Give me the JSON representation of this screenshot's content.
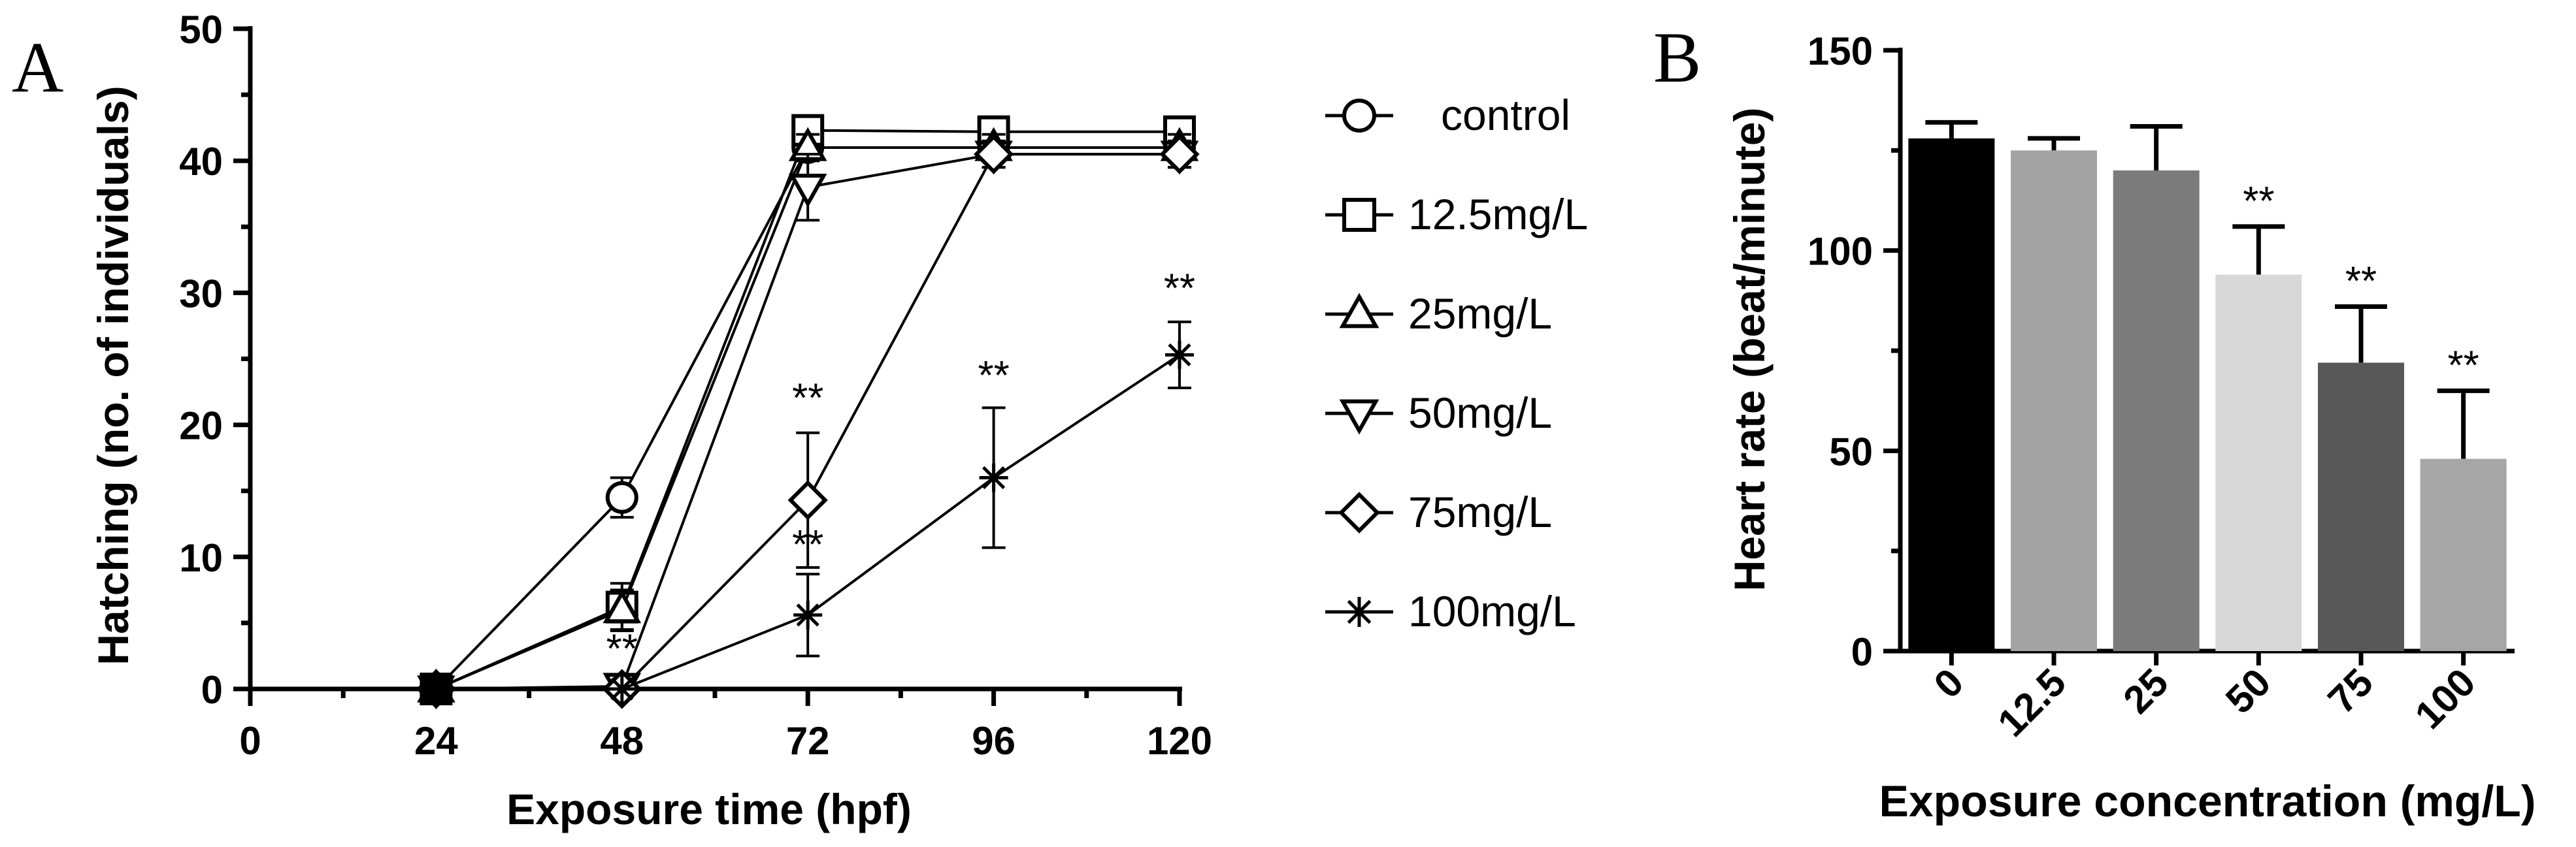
{
  "chart_data": [
    {
      "panel": "A",
      "type": "line",
      "xlabel": "Exposure time (hpf)",
      "ylabel": "Hatching (no. of individuals)",
      "xlim": [
        0,
        120
      ],
      "ylim": [
        0,
        50
      ],
      "xticks": [
        0,
        24,
        48,
        72,
        96,
        120
      ],
      "yticks": [
        0,
        10,
        20,
        30,
        40,
        50
      ],
      "legend_position": "right",
      "series": [
        {
          "name": "control",
          "marker": "circle",
          "x": [
            24,
            48,
            72,
            96,
            120
          ],
          "y": [
            0,
            14.5,
            41.0,
            41.0,
            41.0
          ],
          "err": [
            0,
            1.5,
            1.0,
            1.0,
            1.0
          ]
        },
        {
          "name": "12.5mg/L",
          "marker": "square",
          "x": [
            24,
            48,
            72,
            96,
            120
          ],
          "y": [
            0,
            6.2,
            42.3,
            42.2,
            42.2
          ],
          "err": [
            0,
            1.8,
            1.0,
            1.0,
            1.0
          ]
        },
        {
          "name": "25mg/L",
          "marker": "triangle-up",
          "x": [
            24,
            48,
            72,
            96,
            120
          ],
          "y": [
            0,
            6.0,
            41.0,
            41.0,
            41.0
          ],
          "err": [
            0,
            1.5,
            1.0,
            1.0,
            1.0
          ]
        },
        {
          "name": "50mg/L",
          "marker": "triangle-down",
          "x": [
            24,
            48,
            72,
            96,
            120
          ],
          "y": [
            0,
            0.2,
            38.0,
            40.5,
            40.5
          ],
          "err": [
            0,
            0,
            2.5,
            1.0,
            1.0
          ]
        },
        {
          "name": "75mg/L",
          "marker": "diamond",
          "x": [
            24,
            48,
            72,
            96,
            120
          ],
          "y": [
            0,
            0,
            14.3,
            40.5,
            40.5
          ],
          "err": [
            0,
            0,
            5.1,
            1.0,
            1.0
          ]
        },
        {
          "name": "100mg/L",
          "marker": "asterisk",
          "x": [
            24,
            48,
            72,
            96,
            120
          ],
          "y": [
            0,
            0,
            5.6,
            16.0,
            25.3
          ],
          "err": [
            0,
            0,
            3.1,
            5.3,
            2.5
          ]
        }
      ],
      "annotations": [
        {
          "text": "**",
          "x": 48,
          "y": 2.0
        },
        {
          "text": "**",
          "x": 72,
          "y": 21.0
        },
        {
          "text": "**",
          "x": 72,
          "y": 9.9
        },
        {
          "text": "**",
          "x": 96,
          "y": 22.7
        },
        {
          "text": "**",
          "x": 120,
          "y": 29.3
        }
      ]
    },
    {
      "panel": "B",
      "type": "bar",
      "xlabel": "Exposure concentration (mg/L)",
      "ylabel": "Heart rate (beat/minute)",
      "ylim": [
        0,
        150
      ],
      "yticks": [
        0,
        50,
        100,
        150
      ],
      "categories": [
        "0",
        "12.5",
        "25",
        "50",
        "75",
        "100"
      ],
      "values": [
        128,
        125,
        120,
        94,
        72,
        48
      ],
      "errors": [
        4,
        3,
        11,
        12,
        14,
        17
      ],
      "significance": [
        "",
        "",
        "",
        "**",
        "**",
        "**"
      ],
      "colors": [
        "#000000",
        "#a3a3a3",
        "#7b7b7b",
        "#d8d8d8",
        "#585858",
        "#a6a6a6"
      ]
    }
  ],
  "panel_labels": [
    "A",
    "B"
  ]
}
